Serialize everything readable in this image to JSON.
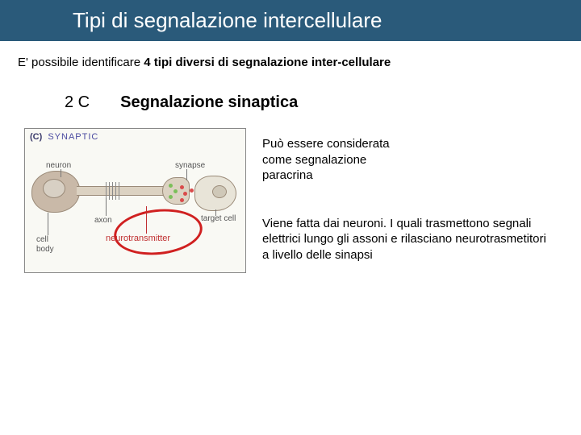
{
  "title": "Tipi di segnalazione intercellulare",
  "subtitle_prefix": "E' possibile identificare ",
  "subtitle_bold": "4 tipi diversi di segnalazione inter-cellulare",
  "section": {
    "label": "2 C",
    "heading": "Segnalazione sinaptica"
  },
  "diagram": {
    "panel_letter": "(C)",
    "panel_title": "SYNAPTIC",
    "labels": {
      "neuron": "neuron",
      "synapse": "synapse",
      "axon": "axon",
      "target_cell": "target cell",
      "cell": "cell",
      "body": "body",
      "neurotransmitter": "neurotransmitter"
    },
    "colors": {
      "header_bg": "#2a5a7a",
      "soma_fill": "#c9b9a8",
      "axon_fill": "#dcd2c2",
      "target_fill": "#e8e4d8",
      "vesicle_green": "#7bbf5a",
      "vesicle_red": "#d94a4a",
      "highlight_circle": "#d02020",
      "neurotransmitter_text": "#c03030",
      "box_bg": "#f9f9f4"
    }
  },
  "paragraphs": {
    "p1": "Può essere considerata come segnalazione paracrina",
    "p2": "Viene fatta dai neuroni. I quali trasmettono segnali elettrici lungo gli assoni e rilasciano neurotrasmetitori a livello delle sinapsi"
  }
}
